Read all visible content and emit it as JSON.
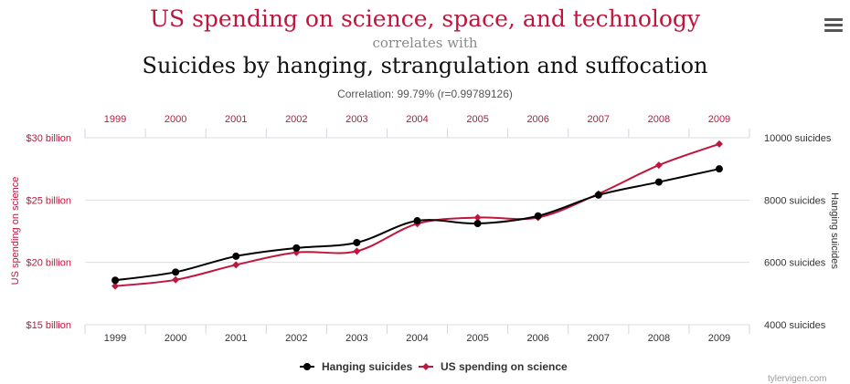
{
  "header": {
    "title_a": "US spending on science, space, and technology",
    "correlates": "correlates with",
    "title_b": "Suicides by hanging, strangulation and suffocation",
    "correlation": "Correlation: 99.79% (r=0.99789126)"
  },
  "menu": {
    "icon": "hamburger-menu-icon"
  },
  "credit": "tylervigen.com",
  "colors": {
    "series_a": "#c0163d",
    "series_b": "#000000",
    "grid": "#d9dee8"
  },
  "chart_data": {
    "type": "line",
    "categories": [
      "1999",
      "2000",
      "2001",
      "2002",
      "2003",
      "2004",
      "2005",
      "2006",
      "2007",
      "2008",
      "2009"
    ],
    "left_axis": {
      "label": "US spending on science",
      "ticks": [
        "$15 billion",
        "$20 billion",
        "$25 billion",
        "$30 billion"
      ],
      "range": [
        15,
        30
      ]
    },
    "right_axis": {
      "label": "Hanging suicides",
      "ticks": [
        "4000 suicides",
        "6000 suicides",
        "8000 suicides",
        "10000 suicides"
      ],
      "range": [
        4000,
        10000
      ]
    },
    "series": [
      {
        "name": "Hanging suicides",
        "axis": "right",
        "color": "#000000",
        "marker": "circle",
        "values": [
          5427,
          5688,
          6198,
          6462,
          6635,
          7336,
          7248,
          7491,
          8161,
          8578,
          9000
        ]
      },
      {
        "name": "US spending on science",
        "axis": "left",
        "color": "#c0163d",
        "marker": "diamond",
        "values": [
          18.1,
          18.6,
          19.8,
          20.8,
          20.9,
          23.1,
          23.6,
          23.6,
          25.5,
          27.8,
          29.5
        ]
      }
    ],
    "legend_position": "bottom-center",
    "grid": true
  }
}
